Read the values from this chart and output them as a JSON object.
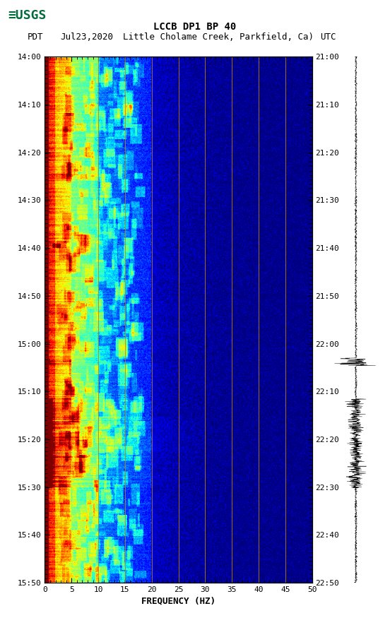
{
  "title1": "LCCB DP1 BP 40",
  "title2": "PDT   Jul23,2020Little Cholame Creek, Parkfield, Ca)     UTC",
  "title2_pdt": "PDT",
  "title2_date": "Jul23,2020",
  "title2_loc": "Little Cholame Creek, Parkfield, Ca)",
  "title2_utc": "UTC",
  "left_yticks": [
    "14:00",
    "14:10",
    "14:20",
    "14:30",
    "14:40",
    "14:50",
    "15:00",
    "15:10",
    "15:20",
    "15:30",
    "15:40",
    "15:50"
  ],
  "right_yticks": [
    "21:00",
    "21:10",
    "21:20",
    "21:30",
    "21:40",
    "21:50",
    "22:00",
    "22:10",
    "22:20",
    "22:30",
    "22:40",
    "22:50"
  ],
  "xmin": 0,
  "xmax": 50,
  "xticks": [
    0,
    5,
    10,
    15,
    20,
    25,
    30,
    35,
    40,
    45,
    50
  ],
  "xlabel": "FREQUENCY (HZ)",
  "vertical_lines_x": [
    10,
    15,
    20,
    25,
    30,
    35,
    40,
    45
  ],
  "seed": 42,
  "fig_width": 5.52,
  "fig_height": 8.92
}
